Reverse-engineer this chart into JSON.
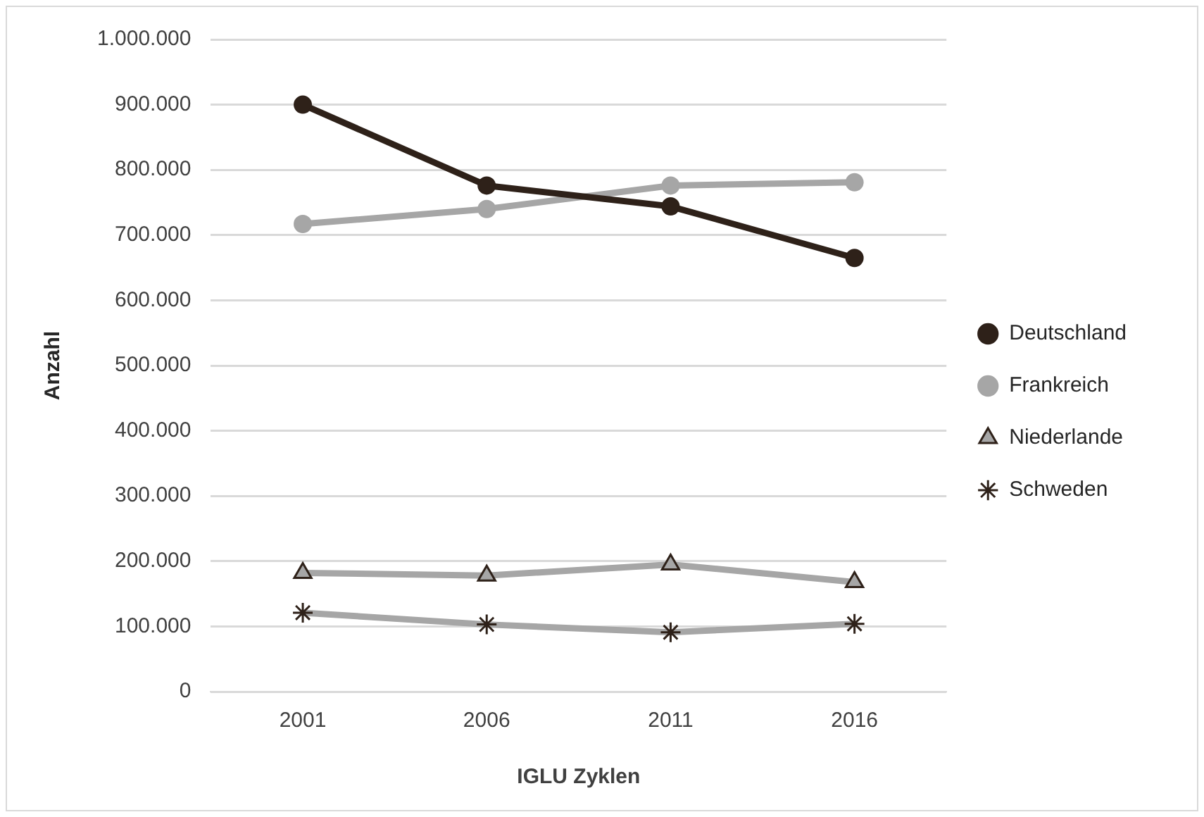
{
  "chart_data": {
    "type": "line",
    "xlabel": "IGLU Zyklen",
    "ylabel": "Anzahl",
    "categories": [
      "2001",
      "2006",
      "2011",
      "2016"
    ],
    "series": [
      {
        "name": "Deutschland",
        "color": "#2e2119",
        "marker": "circle",
        "values": [
          900000,
          776000,
          744000,
          665000
        ]
      },
      {
        "name": "Frankreich",
        "color": "#a6a6a6",
        "marker": "circle",
        "values": [
          717000,
          740000,
          776000,
          781000
        ]
      },
      {
        "name": "Niederlande",
        "color": "#a6a6a6",
        "marker": "triangle",
        "values": [
          182000,
          178000,
          195000,
          168000
        ]
      },
      {
        "name": "Schweden",
        "color": "#a6a6a6",
        "marker": "cross",
        "values": [
          121000,
          103000,
          91000,
          104000
        ]
      }
    ],
    "ylim": [
      0,
      1000000
    ],
    "yticks": [
      {
        "value": 0,
        "label": "0"
      },
      {
        "value": 100000,
        "label": "100.000"
      },
      {
        "value": 200000,
        "label": "200.000"
      },
      {
        "value": 300000,
        "label": "300.000"
      },
      {
        "value": 400000,
        "label": "400.000"
      },
      {
        "value": 500000,
        "label": "500.000"
      },
      {
        "value": 600000,
        "label": "600.000"
      },
      {
        "value": 700000,
        "label": "700.000"
      },
      {
        "value": 800000,
        "label": "800.000"
      },
      {
        "value": 900000,
        "label": "900.000"
      },
      {
        "value": 1000000,
        "label": "1.000.000"
      }
    ],
    "grid": "y",
    "legend": "right",
    "line_style": "solid"
  }
}
